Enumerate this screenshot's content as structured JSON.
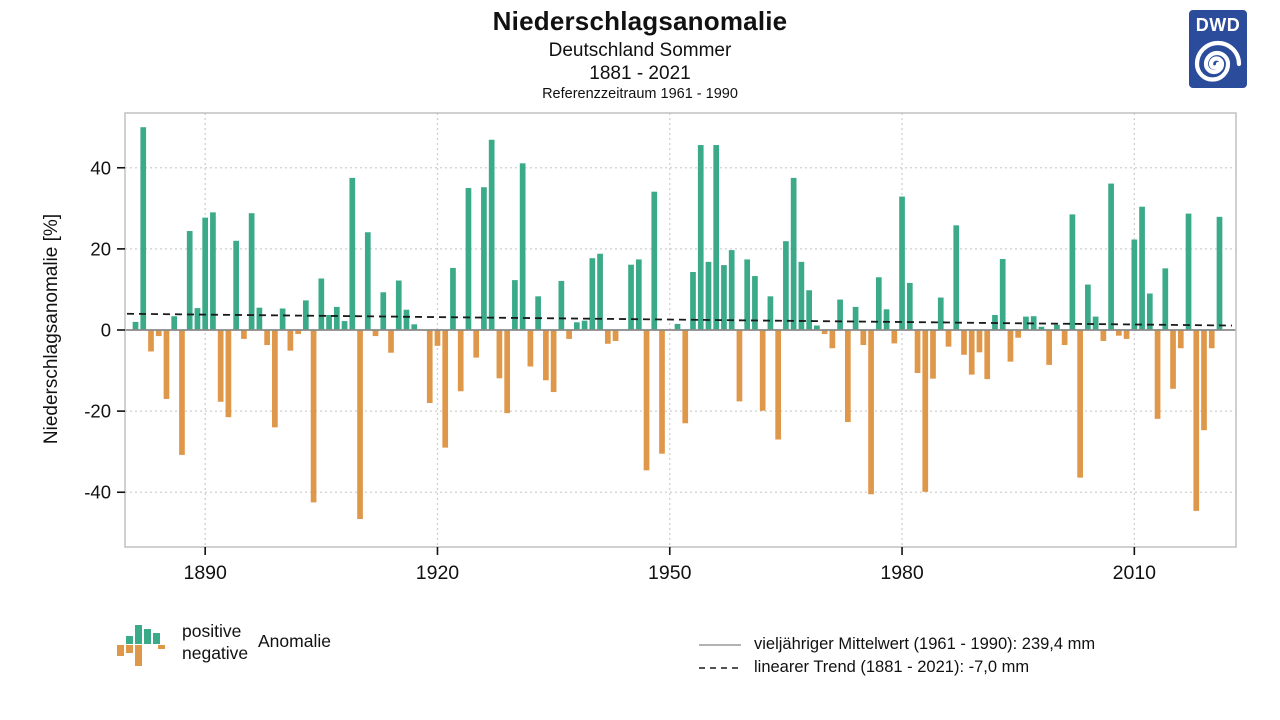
{
  "header": {
    "title": "Niederschlagsanomalie",
    "subtitle": "Deutschland Sommer",
    "period": "1881 - 2021",
    "reference": "Referenzzeitraum 1961 - 1990"
  },
  "logo": {
    "text": "DWD",
    "color": "#2B4B9B"
  },
  "legend": {
    "positive": "positive",
    "negative": "negative",
    "anomaly": "Anomalie",
    "mean_label": "vieljähriger Mittelwert (1961 - 1990): 239,4 mm",
    "trend_label": "linearer Trend (1881 - 2021): -7,0 mm"
  },
  "chart_data": {
    "type": "bar",
    "title": "Niederschlagsanomalie",
    "ylabel": "Niederschlagsanomalie [%]",
    "x_start": 1881,
    "x_end": 2021,
    "ylim": [
      -53.5,
      53.5
    ],
    "yticks": [
      40,
      20,
      0,
      -20,
      -40
    ],
    "xticks": [
      1890,
      1920,
      1950,
      1980,
      2010
    ],
    "grid": "dotted",
    "legend_position": "bottom",
    "colors": {
      "positive": "#3BAA88",
      "negative": "#DF984A",
      "grid": "#cfcfcf",
      "frame": "#c0c0c0",
      "zero_line": "#8a8a8a",
      "trend_line": "#1a1a1a"
    },
    "mean_line": {
      "value_percent": 0,
      "value_mm": "239,4 mm",
      "period": "1961 - 1990"
    },
    "trend_line": {
      "start_percent": 4.0,
      "end_percent": 1.1,
      "total_mm": "-7,0 mm",
      "period": "1881 - 2021"
    },
    "values": [
      2.0,
      50.0,
      -5.3,
      -1.5,
      -17.0,
      3.4,
      -30.8,
      24.4,
      5.4,
      27.7,
      29.0,
      -17.7,
      -21.5,
      22.0,
      -2.2,
      28.8,
      5.5,
      -3.7,
      -24.0,
      5.3,
      -5.1,
      -1.0,
      7.3,
      -42.5,
      12.7,
      3.7,
      5.7,
      2.2,
      37.5,
      -46.6,
      24.1,
      -1.5,
      9.3,
      -5.6,
      12.2,
      5.0,
      1.4,
      0.0,
      -18.0,
      -3.9,
      -29.0,
      15.3,
      -15.1,
      35.0,
      -6.8,
      35.2,
      46.9,
      -11.9,
      -20.5,
      12.3,
      41.1,
      -9.0,
      8.3,
      -12.4,
      -15.3,
      12.1,
      -2.2,
      1.9,
      2.3,
      17.7,
      18.8,
      -3.4,
      -2.7,
      0.0,
      16.1,
      17.4,
      -34.6,
      34.1,
      -30.5,
      0.0,
      1.5,
      -23.0,
      14.3,
      45.6,
      16.8,
      45.6,
      16.0,
      19.7,
      -17.6,
      17.4,
      13.3,
      -19.9,
      8.3,
      -27.0,
      21.9,
      37.5,
      16.8,
      9.8,
      1.1,
      -1.0,
      -4.5,
      7.5,
      -22.7,
      5.7,
      -3.7,
      -40.5,
      13.0,
      5.1,
      -3.3,
      32.9,
      11.6,
      -10.6,
      -39.9,
      -12.0,
      8.0,
      -4.1,
      25.8,
      -6.1,
      -11.0,
      -5.5,
      -12.1,
      3.7,
      17.5,
      -7.8,
      -1.9,
      3.3,
      3.4,
      0.8,
      -8.6,
      1.3,
      -3.7,
      28.5,
      -36.4,
      11.2,
      3.3,
      -2.7,
      36.1,
      -1.4,
      -2.2,
      22.3,
      30.4,
      9.0,
      -21.9,
      15.2,
      -14.5,
      -4.5,
      28.7,
      -44.6,
      -24.7,
      -4.5,
      27.9
    ]
  }
}
